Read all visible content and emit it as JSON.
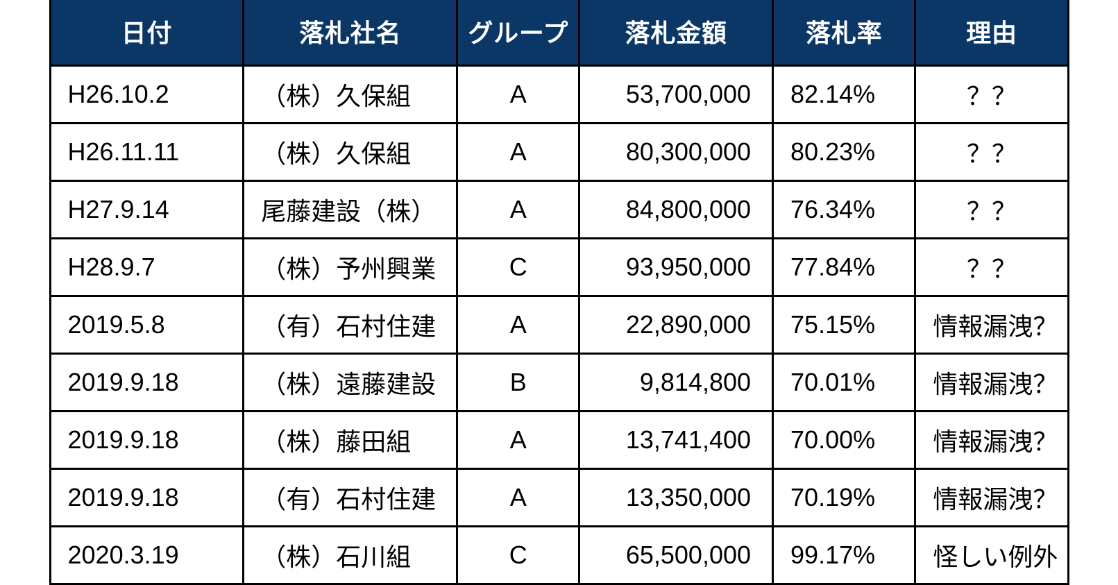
{
  "table": {
    "header_bg": "#0b3766",
    "header_fg": "#ffffff",
    "cell_bg": "#ffffff",
    "cell_fg": "#000000",
    "border_color": "#000000",
    "border_width": 3,
    "header_fontsize": 36,
    "cell_fontsize": 36,
    "columns": [
      {
        "label": "日付",
        "align": "left",
        "width_pct": 19
      },
      {
        "label": "落札社名",
        "align": "left",
        "width_pct": 21
      },
      {
        "label": "グループ",
        "align": "center",
        "width_pct": 12
      },
      {
        "label": "落札金額",
        "align": "right",
        "width_pct": 19
      },
      {
        "label": "落札率",
        "align": "left",
        "width_pct": 14
      },
      {
        "label": "理由",
        "align": "center",
        "width_pct": 15
      }
    ],
    "rows": [
      [
        "H26.10.2",
        "（株）久保組",
        "A",
        "53,700,000",
        "82.14%",
        "？？"
      ],
      [
        "H26.11.11",
        "（株）久保組",
        "A",
        "80,300,000",
        "80.23%",
        "？？"
      ],
      [
        "H27.9.14",
        "尾藤建設（株）",
        "A",
        "84,800,000",
        "76.34%",
        "？？"
      ],
      [
        "H28.9.7",
        "（株）予州興業",
        "C",
        "93,950,000",
        "77.84%",
        "？？"
      ],
      [
        "2019.5.8",
        "（有）石村住建",
        "A",
        "22,890,000",
        "75.15%",
        "情報漏洩？"
      ],
      [
        "2019.9.18",
        "（株）遠藤建設",
        "B",
        "9,814,800",
        "70.01%",
        "情報漏洩？"
      ],
      [
        "2019.9.18",
        "（株）藤田組",
        "A",
        "13,741,400",
        "70.00%",
        "情報漏洩？"
      ],
      [
        "2019.9.18",
        "（有）石村住建",
        "A",
        "13,350,000",
        "70.19%",
        "情報漏洩？"
      ],
      [
        "2020.3.19",
        "（株）石川組",
        "C",
        "65,500,000",
        "99.17%",
        "怪しい例外"
      ]
    ]
  }
}
